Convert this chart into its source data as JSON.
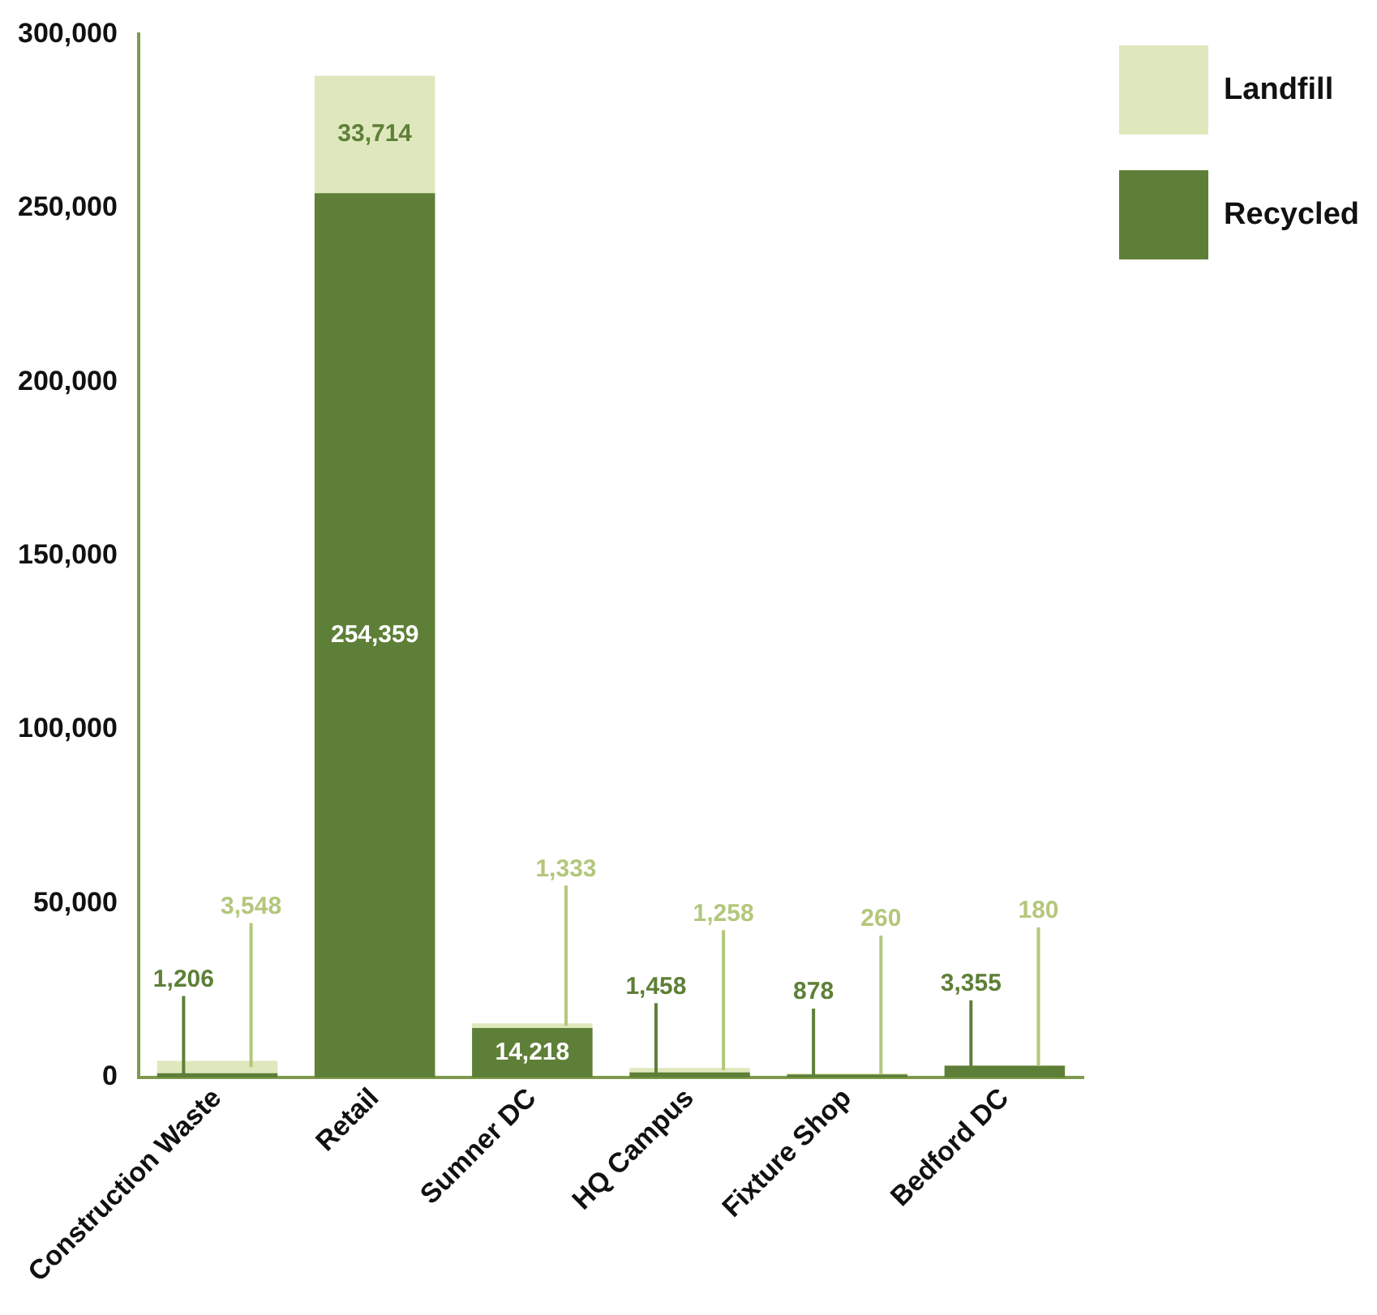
{
  "chart_data": {
    "type": "bar",
    "stacked": true,
    "categories": [
      "Construction Waste",
      "Retail",
      "Sumner DC",
      "HQ Campus",
      "Fixture Shop",
      "Bedford DC"
    ],
    "series": [
      {
        "name": "Recycled",
        "color": "#5e7f37",
        "values": [
          1206,
          254359,
          14218,
          1458,
          878,
          3355
        ],
        "value_labels": [
          "1,206",
          "254,359",
          "14,218",
          "1,458",
          "878",
          "3,355"
        ]
      },
      {
        "name": "Landfill",
        "color": "#dfe8bd",
        "values": [
          3548,
          33714,
          1333,
          1258,
          260,
          180
        ],
        "value_labels": [
          "3,548",
          "33,714",
          "1,333",
          "1,258",
          "260",
          "180"
        ]
      }
    ],
    "ylim": [
      0,
      300000
    ],
    "yticks": [
      {
        "value": 0,
        "label": "0"
      },
      {
        "value": 50000,
        "label": "50,000"
      },
      {
        "value": 100000,
        "label": "100,000"
      },
      {
        "value": 150000,
        "label": "150,000"
      },
      {
        "value": 200000,
        "label": "200,000"
      },
      {
        "value": 250000,
        "label": "250,000"
      },
      {
        "value": 300000,
        "label": "300,000"
      }
    ],
    "grid": false,
    "legend": "top right"
  }
}
